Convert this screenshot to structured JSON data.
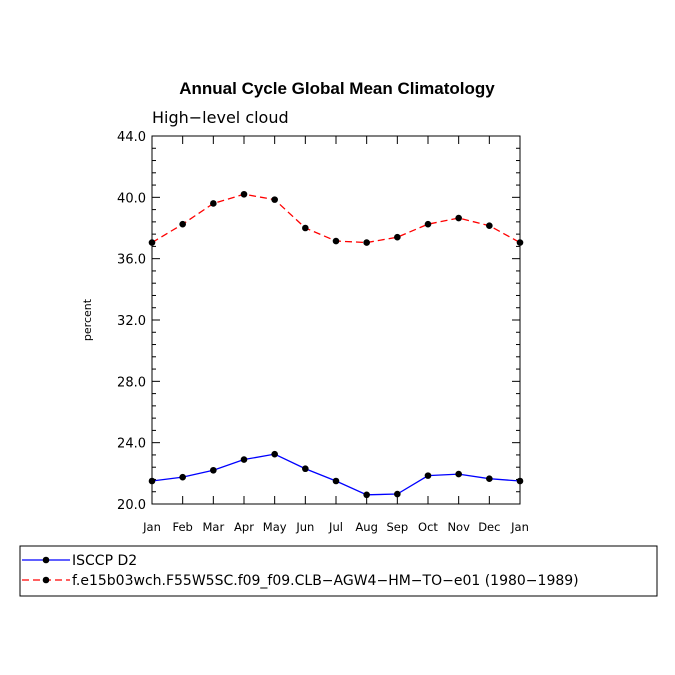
{
  "chart_data": {
    "type": "line",
    "title": "Annual Cycle Global Mean Climatology",
    "subtitle": "High−level cloud",
    "xlabel": "",
    "ylabel": "percent",
    "categories": [
      "Jan",
      "Feb",
      "Mar",
      "Apr",
      "May",
      "Jun",
      "Jul",
      "Aug",
      "Sep",
      "Oct",
      "Nov",
      "Dec",
      "Jan"
    ],
    "ylim": [
      20.0,
      44.0
    ],
    "yticks": [
      "20.0",
      "24.0",
      "28.0",
      "32.0",
      "36.0",
      "40.0",
      "44.0"
    ],
    "grid": false,
    "legend_position": "bottom",
    "series": [
      {
        "name": "ISCCP D2",
        "color": "#0000ff",
        "dash": "solid",
        "values": [
          21.5,
          21.75,
          22.2,
          22.9,
          23.25,
          22.3,
          21.5,
          20.6,
          20.65,
          21.85,
          21.95,
          21.65,
          21.5
        ]
      },
      {
        "name": "f.e15b03wch.F55W5SC.f09_f09.CLB−AGW4−HM−TO−e01 (1980−1989)",
        "color": "#ff0000",
        "dash": "dashed",
        "values": [
          37.05,
          38.25,
          39.6,
          40.2,
          39.85,
          38.0,
          37.15,
          37.05,
          37.4,
          38.25,
          38.65,
          38.15,
          37.05
        ]
      }
    ]
  }
}
